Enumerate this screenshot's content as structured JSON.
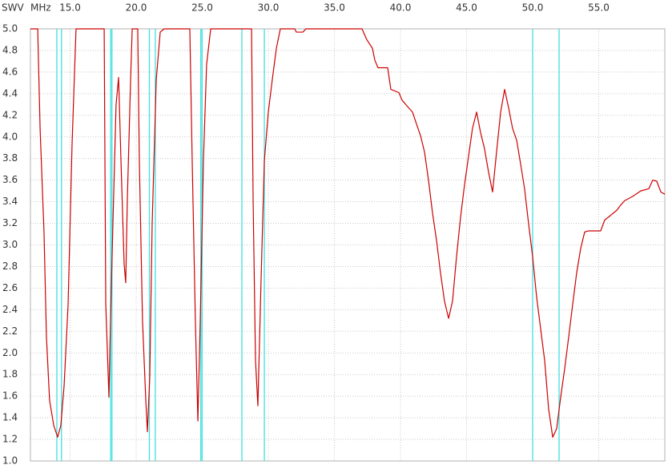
{
  "chart_data": {
    "type": "line",
    "ylabel": "SWV",
    "xlabel": "MHz",
    "xlim": [
      12,
      60
    ],
    "ylim": [
      1,
      5
    ],
    "xticks": [
      {
        "value": 15,
        "label": "15.0"
      },
      {
        "value": 20,
        "label": "20.0"
      },
      {
        "value": 25,
        "label": "25.0"
      },
      {
        "value": 30,
        "label": "30.0"
      },
      {
        "value": 35,
        "label": "35.0"
      },
      {
        "value": 40,
        "label": "40.0"
      },
      {
        "value": 45,
        "label": "45.0"
      },
      {
        "value": 50,
        "label": "50.0"
      },
      {
        "value": 55,
        "label": "55.0"
      }
    ],
    "yticks": [
      {
        "value": 1,
        "label": "1.0"
      },
      1.2,
      1.4,
      1.6,
      1.8,
      {
        "value": 2,
        "label": "2.0"
      },
      2.2,
      2.4,
      2.6,
      2.8,
      {
        "value": 3,
        "label": "3.0"
      },
      3.2,
      3.4,
      3.6,
      3.8,
      {
        "value": 4,
        "label": "4.0"
      },
      4.2,
      4.4,
      4.6,
      4.8,
      {
        "value": 5,
        "label": "5.0"
      }
    ],
    "grid": true,
    "band_color": "#40e0e0",
    "bands": [
      [
        14.0,
        14.35
      ],
      [
        18.068,
        18.168
      ],
      [
        21.0,
        21.45
      ],
      [
        24.89,
        24.99
      ],
      [
        28.0,
        29.7
      ],
      [
        50.0,
        52.0
      ]
    ],
    "series": [
      {
        "color": "#cc0000",
        "x": [
          12.0,
          12.55,
          12.73,
          13.03,
          13.21,
          13.45,
          13.76,
          14.06,
          14.3,
          14.55,
          14.85,
          15.15,
          15.45,
          17.58,
          17.7,
          17.94,
          18.06,
          18.24,
          18.48,
          18.67,
          18.85,
          19.09,
          19.21,
          19.33,
          19.58,
          19.7,
          20.12,
          20.24,
          20.48,
          20.73,
          20.85,
          21.03,
          21.21,
          21.52,
          21.82,
          22.12,
          24.06,
          24.24,
          24.48,
          24.67,
          24.85,
          25.09,
          25.33,
          25.64,
          28.73,
          28.85,
          29.03,
          29.21,
          29.45,
          29.7,
          30.0,
          30.3,
          30.61,
          30.91,
          32.0,
          32.12,
          32.61,
          32.85,
          37.09,
          37.45,
          37.88,
          38.06,
          38.3,
          39.03,
          39.27,
          39.88,
          40.12,
          40.61,
          40.91,
          41.21,
          41.52,
          41.82,
          42.12,
          42.42,
          42.73,
          43.03,
          43.33,
          43.64,
          43.94,
          44.24,
          44.55,
          44.85,
          45.15,
          45.45,
          45.76,
          46.06,
          46.36,
          46.67,
          46.97,
          47.27,
          47.58,
          47.88,
          48.18,
          48.48,
          48.79,
          49.09,
          49.39,
          49.7,
          50.0,
          50.3,
          50.61,
          50.91,
          51.21,
          51.52,
          51.82,
          52.12,
          52.42,
          52.73,
          53.03,
          53.33,
          53.64,
          53.94,
          54.24,
          55.15,
          55.45,
          55.76,
          56.36,
          56.67,
          56.97,
          57.58,
          58.18,
          58.79,
          59.09,
          59.39,
          59.7,
          60.0
        ],
        "values": [
          5.0,
          5.0,
          4.08,
          3.11,
          2.15,
          1.56,
          1.33,
          1.22,
          1.33,
          1.7,
          2.45,
          3.93,
          5.0,
          5.0,
          2.45,
          1.59,
          2.3,
          3.19,
          4.3,
          4.55,
          3.78,
          2.82,
          2.65,
          3.41,
          4.53,
          5.0,
          5.0,
          3.78,
          2.3,
          1.56,
          1.27,
          1.78,
          3.19,
          4.53,
          4.97,
          5.0,
          5.0,
          3.78,
          2.3,
          1.37,
          2.3,
          3.78,
          4.67,
          5.0,
          5.0,
          3.41,
          1.93,
          1.51,
          2.67,
          3.78,
          4.23,
          4.53,
          4.82,
          5.0,
          5.0,
          4.97,
          4.97,
          5.0,
          5.0,
          4.9,
          4.82,
          4.71,
          4.64,
          4.64,
          4.44,
          4.41,
          4.34,
          4.27,
          4.23,
          4.12,
          4.01,
          3.86,
          3.6,
          3.3,
          3.04,
          2.74,
          2.48,
          2.32,
          2.48,
          2.89,
          3.26,
          3.56,
          3.82,
          4.08,
          4.23,
          4.04,
          3.89,
          3.67,
          3.49,
          3.86,
          4.23,
          4.44,
          4.27,
          4.08,
          3.97,
          3.75,
          3.52,
          3.19,
          2.89,
          2.52,
          2.22,
          1.93,
          1.48,
          1.22,
          1.3,
          1.59,
          1.85,
          2.15,
          2.45,
          2.74,
          2.97,
          3.12,
          3.13,
          3.13,
          3.23,
          3.26,
          3.32,
          3.37,
          3.41,
          3.45,
          3.5,
          3.52,
          3.6,
          3.59,
          3.49,
          3.47
        ]
      }
    ]
  }
}
